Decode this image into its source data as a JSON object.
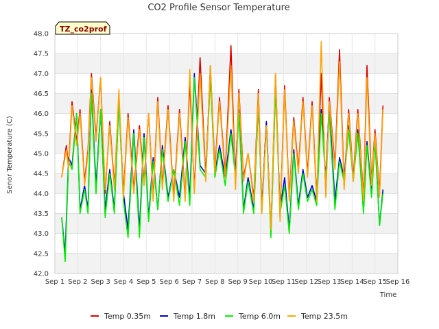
{
  "chart_data": {
    "type": "line",
    "title": "CO2 Profile Sensor Temperature",
    "badge": "TZ_co2prof",
    "xlabel": "Time",
    "ylabel": "Senor Temperature (C)",
    "xlim": [
      1,
      16
    ],
    "ylim": [
      42.0,
      48.0
    ],
    "x_ticks": [
      "Sep 1",
      "Sep 2",
      "Sep 3",
      "Sep 4",
      "Sep 5",
      "Sep 6",
      "Sep 7",
      "Sep 8",
      "Sep 9",
      "Sep 10",
      "Sep 11",
      "Sep 12",
      "Sep 13",
      "Sep 14",
      "Sep 15",
      "Sep 16"
    ],
    "y_ticks": [
      "42.0",
      "42.5",
      "43.0",
      "43.5",
      "44.0",
      "44.5",
      "45.0",
      "45.5",
      "46.0",
      "46.5",
      "47.0",
      "47.5",
      "48.0"
    ],
    "legend_position": "bottom",
    "grid": true,
    "series": [
      {
        "name": "Temp 0.35m",
        "color": "#dd0000",
        "x": [
          1.3,
          1.5,
          1.6,
          1.75,
          1.95,
          2.1,
          2.3,
          2.45,
          2.6,
          2.8,
          3.0,
          3.2,
          3.4,
          3.6,
          3.8,
          4.0,
          4.2,
          4.45,
          4.7,
          4.9,
          5.1,
          5.3,
          5.5,
          5.7,
          5.95,
          6.2,
          6.45,
          6.7,
          6.9,
          7.1,
          7.35,
          7.6,
          7.8,
          8.0,
          8.2,
          8.45,
          8.7,
          8.9,
          9.05,
          9.25,
          9.45,
          9.7,
          9.9,
          10.05,
          10.25,
          10.45,
          10.65,
          10.85,
          11.05,
          11.25,
          11.45,
          11.65,
          11.85,
          12.05,
          12.25,
          12.45,
          12.65,
          12.85,
          13.0,
          13.25,
          13.45,
          13.65,
          13.85,
          14.05,
          14.25,
          14.5,
          14.65,
          14.85,
          15.0,
          15.2,
          15.35
        ],
        "y": [
          44.4,
          45.2,
          44.7,
          46.3,
          45.3,
          46.1,
          44.3,
          45.1,
          47.0,
          45.4,
          46.9,
          44.0,
          45.8,
          44.2,
          46.4,
          44.0,
          46.0,
          44.1,
          45.7,
          44.3,
          46.0,
          43.9,
          46.4,
          44.2,
          46.2,
          43.9,
          46.1,
          43.9,
          46.8,
          44.1,
          47.4,
          44.4,
          47.2,
          44.6,
          46.4,
          44.5,
          47.7,
          44.2,
          46.6,
          44.4,
          45.0,
          43.9,
          46.6,
          43.6,
          45.8,
          43.1,
          47.0,
          43.4,
          46.7,
          43.9,
          45.9,
          44.6,
          46.4,
          44.5,
          46.3,
          43.9,
          47.0,
          44.0,
          46.4,
          44.7,
          47.6,
          44.2,
          46.1,
          44.4,
          46.1,
          43.9,
          47.2,
          44.3,
          45.6,
          44.0,
          46.2
        ]
      },
      {
        "name": "Temp 1.8m",
        "color": "#0000cc",
        "x": [
          1.3,
          1.45,
          1.6,
          1.75,
          1.95,
          2.1,
          2.3,
          2.45,
          2.6,
          2.8,
          3.0,
          3.2,
          3.4,
          3.6,
          3.8,
          4.0,
          4.2,
          4.45,
          4.7,
          4.9,
          5.1,
          5.3,
          5.5,
          5.7,
          5.95,
          6.2,
          6.45,
          6.7,
          6.9,
          7.1,
          7.35,
          7.6,
          7.8,
          8.0,
          8.2,
          8.45,
          8.7,
          8.9,
          9.05,
          9.25,
          9.45,
          9.7,
          9.9,
          10.05,
          10.25,
          10.45,
          10.65,
          10.85,
          11.05,
          11.25,
          11.45,
          11.65,
          11.85,
          12.05,
          12.25,
          12.45,
          12.65,
          12.85,
          13.0,
          13.25,
          13.45,
          13.65,
          13.85,
          14.05,
          14.25,
          14.5,
          14.65,
          14.85,
          15.0,
          15.2,
          15.35
        ],
        "y": [
          43.4,
          42.5,
          44.9,
          44.7,
          46.0,
          43.6,
          44.2,
          43.6,
          46.6,
          44.2,
          46.1,
          43.6,
          44.6,
          43.6,
          46.3,
          44.0,
          43.1,
          45.6,
          43.1,
          45.5,
          43.4,
          44.9,
          43.6,
          45.2,
          43.9,
          44.6,
          43.9,
          45.4,
          43.9,
          47.0,
          44.7,
          44.5,
          47.0,
          44.5,
          45.2,
          44.4,
          45.6,
          44.6,
          46.1,
          43.6,
          44.4,
          43.6,
          46.3,
          43.6,
          45.8,
          43.0,
          46.7,
          43.6,
          44.4,
          43.1,
          45.1,
          43.7,
          44.6,
          43.9,
          44.2,
          43.8,
          46.1,
          44.4,
          46.2,
          43.8,
          44.9,
          44.4,
          45.7,
          44.4,
          45.6,
          43.6,
          45.3,
          44.0,
          45.4,
          43.2,
          44.1
        ]
      },
      {
        "name": "Temp 6.0m",
        "color": "#00ee00",
        "x": [
          1.3,
          1.45,
          1.6,
          1.75,
          1.95,
          2.1,
          2.3,
          2.45,
          2.6,
          2.8,
          3.0,
          3.2,
          3.4,
          3.6,
          3.8,
          4.0,
          4.2,
          4.45,
          4.7,
          4.9,
          5.1,
          5.3,
          5.5,
          5.7,
          5.95,
          6.2,
          6.45,
          6.7,
          6.9,
          7.1,
          7.35,
          7.6,
          7.8,
          8.0,
          8.2,
          8.45,
          8.7,
          8.9,
          9.05,
          9.25,
          9.45,
          9.7,
          9.9,
          10.05,
          10.25,
          10.45,
          10.65,
          10.85,
          11.05,
          11.25,
          11.45,
          11.65,
          11.85,
          12.05,
          12.25,
          12.45,
          12.65,
          12.85,
          13.0,
          13.25,
          13.45,
          13.65,
          13.85,
          14.05,
          14.25,
          14.5,
          14.65,
          14.85,
          15.0,
          15.2,
          15.35
        ],
        "y": [
          43.4,
          42.3,
          44.8,
          44.6,
          46.0,
          43.5,
          44.1,
          43.5,
          46.5,
          44.0,
          46.1,
          43.4,
          44.5,
          43.5,
          46.3,
          43.8,
          42.9,
          45.5,
          42.9,
          45.4,
          43.3,
          44.8,
          43.6,
          45.1,
          43.8,
          44.6,
          43.7,
          45.3,
          43.7,
          46.9,
          44.6,
          44.4,
          46.9,
          44.4,
          45.1,
          44.2,
          45.5,
          44.4,
          46.0,
          43.5,
          44.3,
          43.5,
          46.3,
          43.5,
          45.7,
          42.9,
          46.6,
          43.5,
          44.2,
          43.0,
          45.0,
          43.6,
          44.5,
          43.8,
          44.1,
          43.7,
          46.0,
          44.3,
          46.0,
          43.6,
          44.8,
          44.3,
          45.6,
          44.3,
          45.5,
          43.5,
          45.2,
          43.9,
          45.3,
          43.2,
          44.0
        ]
      },
      {
        "name": "Temp 23.5m",
        "color": "#ffa500",
        "x": [
          1.3,
          1.5,
          1.6,
          1.75,
          1.95,
          2.1,
          2.3,
          2.45,
          2.6,
          2.8,
          3.0,
          3.2,
          3.4,
          3.6,
          3.8,
          4.0,
          4.2,
          4.45,
          4.7,
          4.9,
          5.1,
          5.3,
          5.5,
          5.7,
          5.95,
          6.2,
          6.45,
          6.7,
          6.9,
          7.1,
          7.35,
          7.6,
          7.8,
          8.0,
          8.2,
          8.45,
          8.7,
          8.9,
          9.05,
          9.25,
          9.45,
          9.7,
          9.9,
          10.05,
          10.25,
          10.45,
          10.65,
          10.85,
          11.05,
          11.25,
          11.45,
          11.65,
          11.85,
          12.05,
          12.25,
          12.45,
          12.65,
          12.85,
          13.0,
          13.25,
          13.45,
          13.65,
          13.85,
          14.05,
          14.25,
          14.5,
          14.65,
          14.85,
          15.0,
          15.2,
          15.35
        ],
        "y": [
          44.4,
          45.1,
          44.6,
          46.2,
          45.2,
          46.0,
          44.2,
          45.0,
          46.9,
          45.3,
          46.9,
          44.1,
          45.7,
          44.1,
          46.6,
          43.9,
          45.9,
          44.0,
          45.6,
          44.2,
          46.0,
          43.8,
          46.3,
          44.1,
          46.1,
          43.8,
          46.0,
          43.8,
          47.1,
          44.0,
          47.0,
          44.3,
          47.2,
          44.5,
          46.3,
          44.4,
          47.2,
          44.1,
          46.5,
          44.3,
          45.0,
          43.8,
          46.5,
          43.5,
          45.7,
          43.1,
          47.0,
          43.3,
          46.6,
          43.8,
          45.8,
          44.5,
          46.3,
          44.4,
          46.2,
          43.8,
          47.8,
          43.9,
          46.3,
          44.6,
          47.3,
          44.1,
          46.0,
          44.3,
          46.0,
          43.8,
          46.9,
          44.2,
          45.5,
          43.9,
          46.1
        ]
      }
    ]
  }
}
